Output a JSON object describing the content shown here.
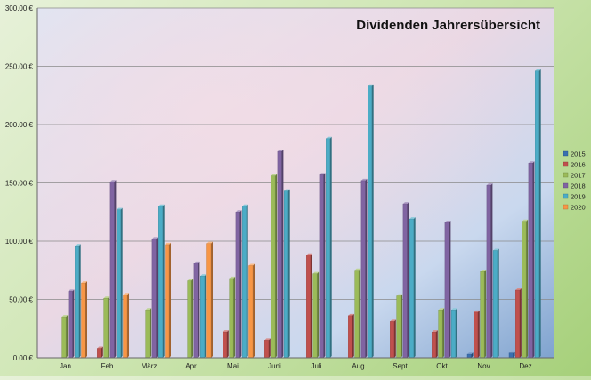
{
  "chart_data": {
    "type": "bar",
    "title": "Dividenden Jahrersübersicht",
    "xlabel": "",
    "ylabel": "",
    "ylim": [
      0,
      300
    ],
    "yticks": [
      0,
      50,
      100,
      150,
      200,
      250,
      300
    ],
    "ytick_labels": [
      "0.00 €",
      "50.00 €",
      "100.00 €",
      "150.00 €",
      "200.00 €",
      "250.00 €",
      "300.00 €"
    ],
    "grid": true,
    "legend_position": "right",
    "categories": [
      "Jan",
      "Feb",
      "März",
      "Apr",
      "Mai",
      "Juni",
      "Juli",
      "Aug",
      "Sept",
      "Okt",
      "Nov",
      "Dez"
    ],
    "series": [
      {
        "name": "2015",
        "color": "#3a6fb0",
        "values": [
          0,
          0,
          0,
          0,
          0,
          0,
          0,
          0,
          0,
          0,
          3,
          4
        ]
      },
      {
        "name": "2016",
        "color": "#c0504d",
        "values": [
          0,
          8,
          0,
          0,
          22,
          15,
          88,
          36,
          31,
          22,
          39,
          58
        ]
      },
      {
        "name": "2017",
        "color": "#9bbb59",
        "values": [
          35,
          51,
          41,
          66,
          68,
          156,
          72,
          75,
          53,
          41,
          74,
          117
        ]
      },
      {
        "name": "2018",
        "color": "#8064a2",
        "values": [
          57,
          151,
          102,
          81,
          125,
          177,
          157,
          152,
          132,
          116,
          148,
          167
        ]
      },
      {
        "name": "2019",
        "color": "#4bacc6",
        "values": [
          96,
          127,
          130,
          70,
          130,
          143,
          188,
          233,
          119,
          41,
          92,
          246
        ]
      },
      {
        "name": "2020",
        "color": "#f79646",
        "values": [
          64,
          54,
          97,
          98,
          79,
          0,
          0,
          0,
          0,
          0,
          0,
          0
        ]
      }
    ]
  }
}
